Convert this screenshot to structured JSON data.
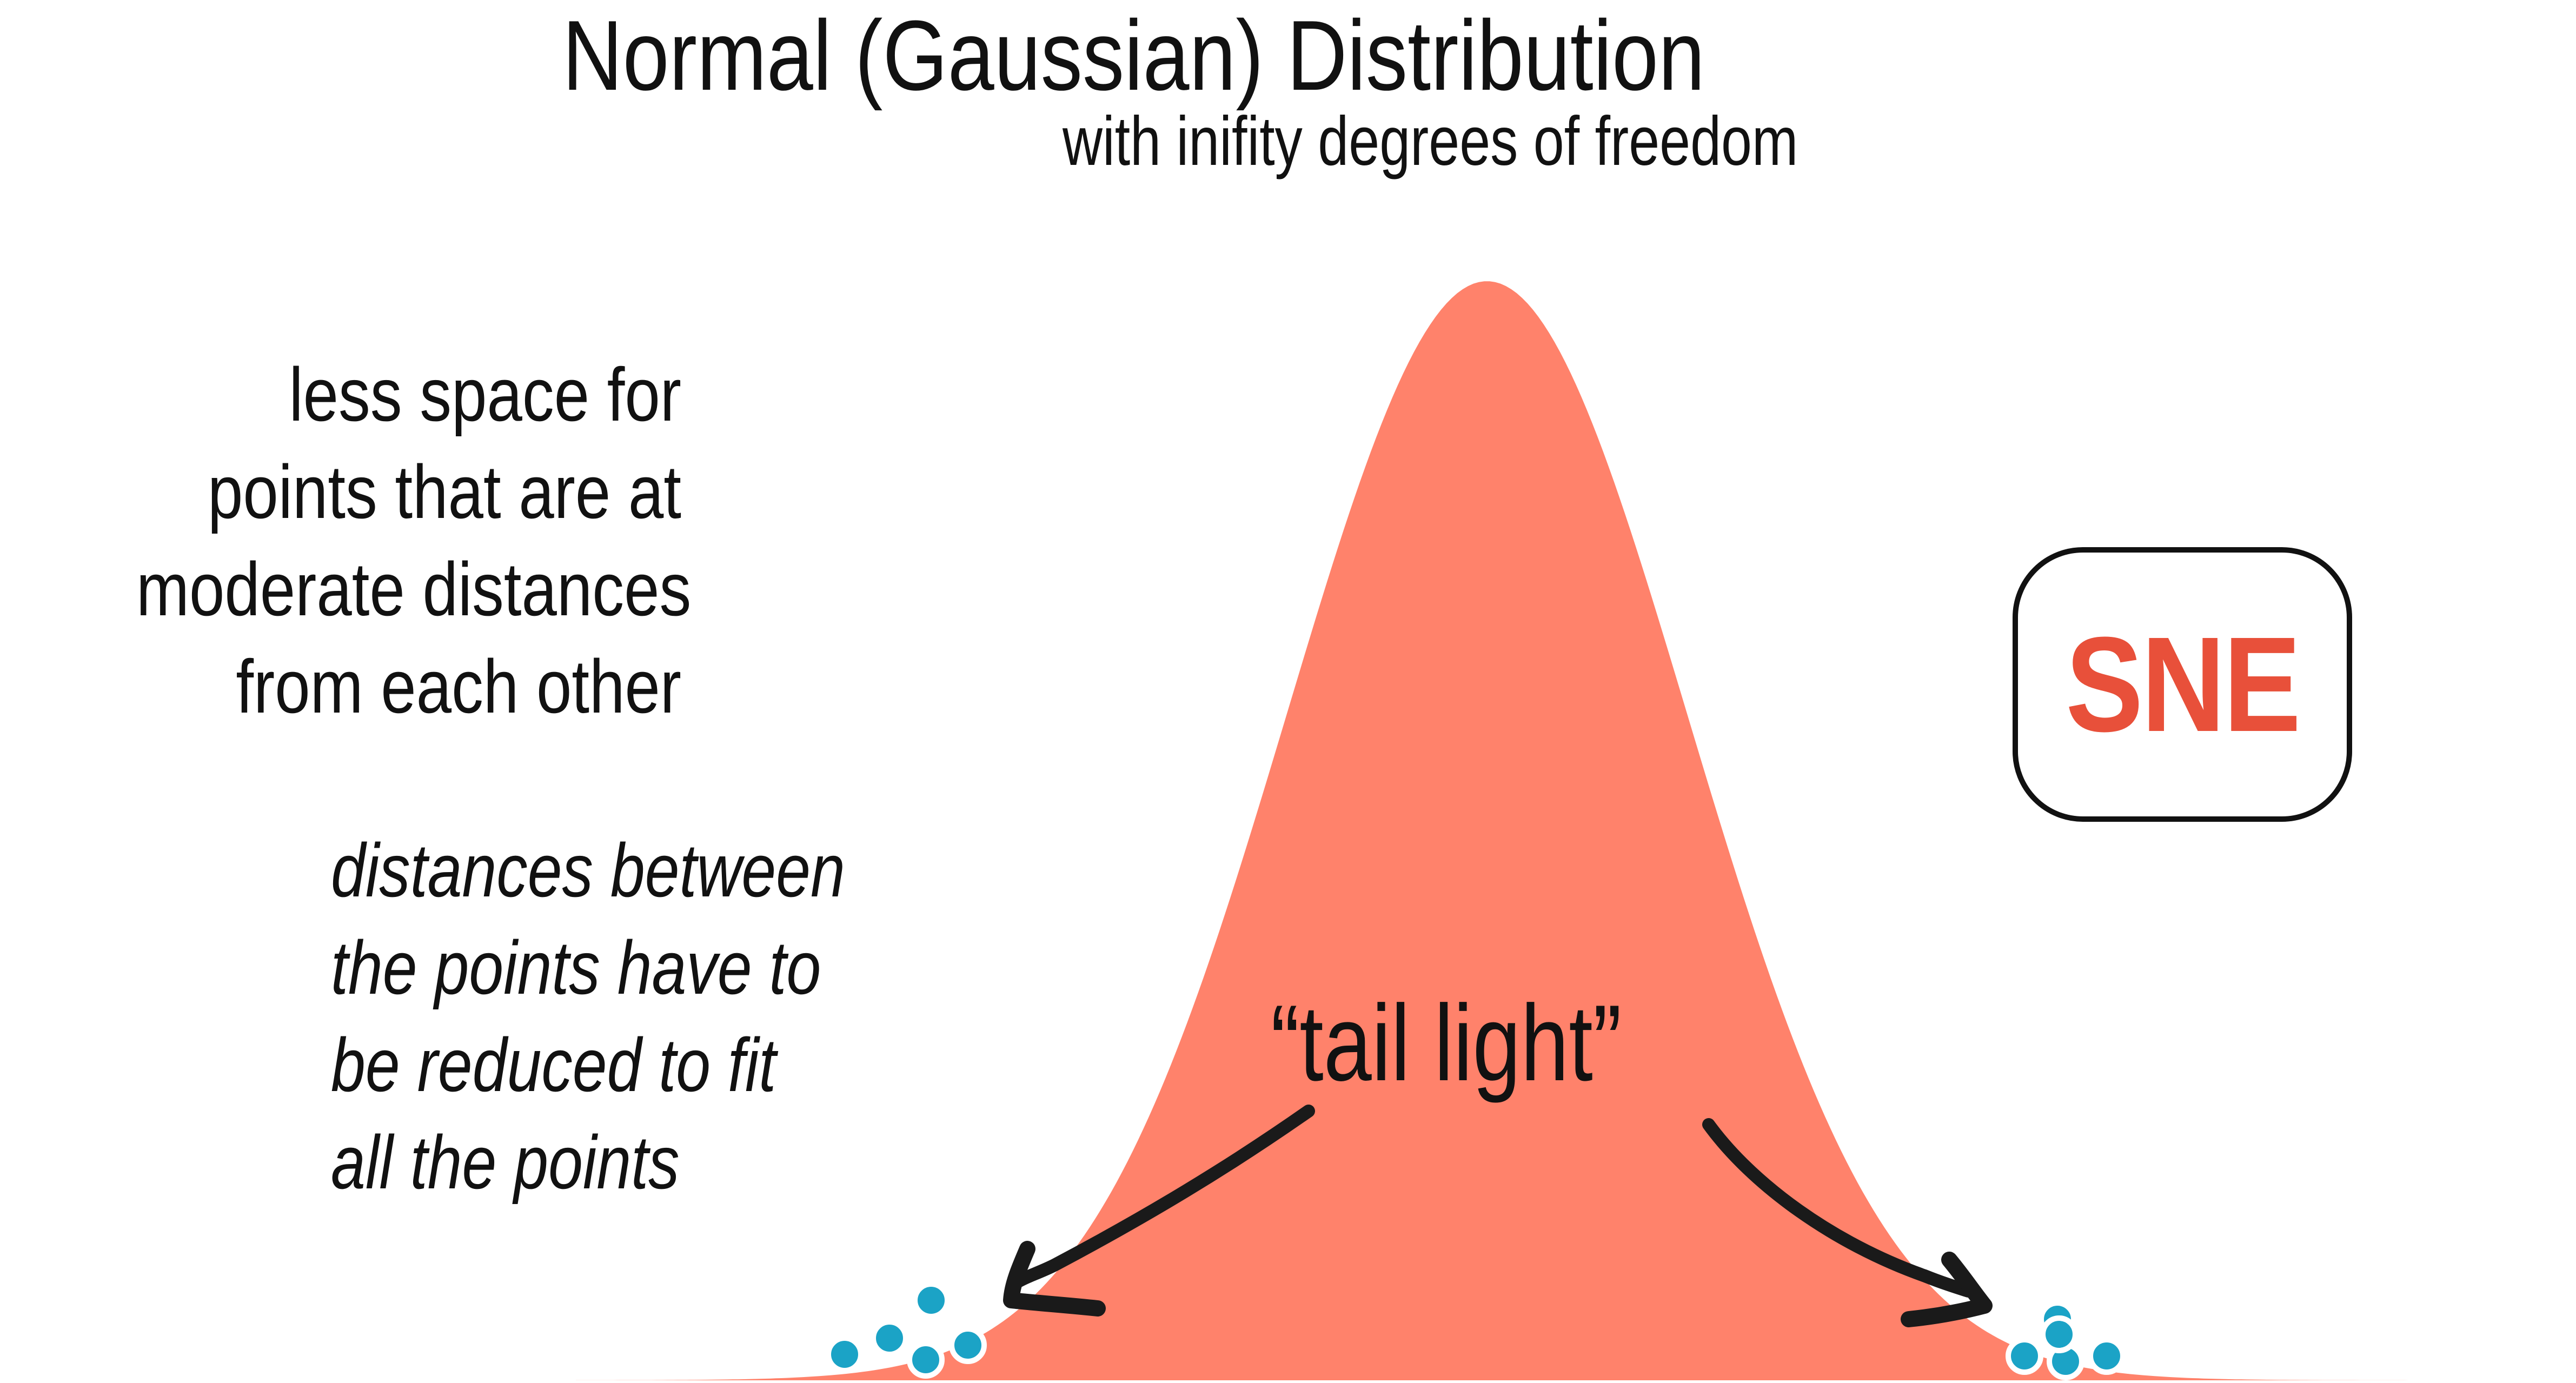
{
  "header": {
    "title": "Normal (Gaussian) Distribution",
    "subtitle": "with inifity degrees of freedom"
  },
  "annotations": {
    "left_note": [
      "less space for",
      "points that are at",
      "moderate distances",
      "from each other"
    ],
    "italic_note": [
      "distances between",
      "the points have to",
      "be reduced to fit",
      "all the points"
    ],
    "tail_label": "“tail light”"
  },
  "badge": {
    "label": "SNE"
  },
  "colors": {
    "curve_fill": "#FF826B",
    "point_fill": "#1BA3C6",
    "point_stroke": "#ffffff",
    "badge_text": "#E8503A",
    "arrow": "#1a1a1a",
    "text": "#111111"
  },
  "icons": {
    "arrow_left": "curved-arrow-down-left",
    "arrow_right": "curved-arrow-down-right",
    "points": "dot-cluster"
  },
  "curve": {
    "type": "normal-bell",
    "mean": 0,
    "std": 1
  },
  "clusters": {
    "left_count": 5,
    "right_count": 5
  }
}
